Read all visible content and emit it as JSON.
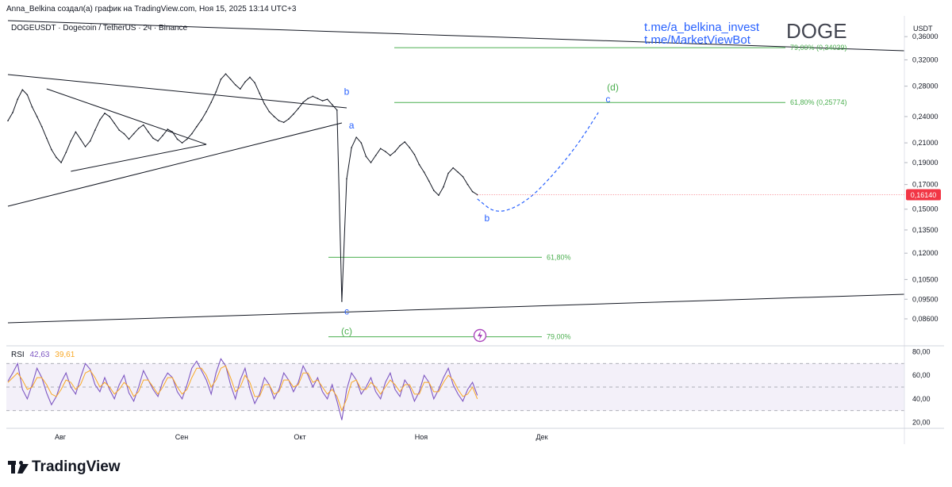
{
  "header": {
    "attribution": "Anna_Belkina создал(а) график на TradingView.com, Ноя 15, 2025 13:14 UTC+3",
    "symbol_info": "DOGEUSDT · Dogecoin / TetherUS · 2ч · Binance",
    "link1": "t.me/a_belkina_invest",
    "link2": "t.me/MarketViewBot",
    "ticker": "DOGE"
  },
  "footer": {
    "brand": "TradingView"
  },
  "rsi_legend": {
    "label": "RSI",
    "value1": "42,63",
    "value2": "39,61"
  },
  "colors": {
    "price": "#131722",
    "rsi_line": "#7e57c2",
    "rsi_ma": "#f9a825",
    "fib": "#4caf50",
    "wave": "#2962ff",
    "price_badge": "#f23645"
  },
  "chart_data": [
    {
      "type": "line",
      "title": "DOGEUSDT · Dogecoin / TetherUS · 2ч · Binance",
      "ylabel": "USDT",
      "y_scale": "log",
      "ylim": [
        0.075,
        0.4
      ],
      "x_ticks": [
        "Авг",
        "Сен",
        "Окт",
        "Ноя",
        "Дек"
      ],
      "y_ticks": [
        "0,36000",
        "0,32000",
        "0,28000",
        "0,24000",
        "0,21000",
        "0,19000",
        "0,17000",
        "0,15000",
        "0,13500",
        "0,12000",
        "0,10500",
        "0,09500",
        "0,08600"
      ],
      "y_tick_values": [
        0.36,
        0.32,
        0.28,
        0.24,
        0.21,
        0.19,
        0.17,
        0.15,
        0.135,
        0.12,
        0.105,
        0.095,
        0.086
      ],
      "last_price": "0,16140",
      "last_price_value": 0.1614,
      "series": [
        {
          "values": [
            0.235,
            0.245,
            0.262,
            0.275,
            0.268,
            0.252,
            0.24,
            0.228,
            0.215,
            0.203,
            0.195,
            0.19,
            0.2,
            0.212,
            0.222,
            0.214,
            0.206,
            0.212,
            0.224,
            0.236,
            0.244,
            0.24,
            0.232,
            0.224,
            0.22,
            0.214,
            0.22,
            0.226,
            0.23,
            0.222,
            0.215,
            0.212,
            0.218,
            0.225,
            0.222,
            0.214,
            0.21,
            0.214,
            0.22,
            0.228,
            0.236,
            0.246,
            0.258,
            0.272,
            0.29,
            0.298,
            0.29,
            0.282,
            0.276,
            0.286,
            0.293,
            0.285,
            0.27,
            0.256,
            0.246,
            0.24,
            0.235,
            0.233,
            0.237,
            0.243,
            0.25,
            0.258,
            0.263,
            0.266,
            0.263,
            0.26,
            0.262,
            0.255,
            0.248,
            0.094,
            0.175,
            0.205,
            0.216,
            0.21,
            0.196,
            0.19,
            0.197,
            0.204,
            0.201,
            0.197,
            0.201,
            0.207,
            0.211,
            0.205,
            0.198,
            0.188,
            0.181,
            0.173,
            0.165,
            0.161,
            0.168,
            0.18,
            0.185,
            0.181,
            0.177,
            0.17,
            0.164,
            0.1614
          ]
        }
      ],
      "fib_levels": [
        {
          "label": "79,00% (0,34039)",
          "value": 0.34039
        },
        {
          "label": "61,80% (0,25774)",
          "value": 0.25774
        },
        {
          "label": "61,80%",
          "value": 0.1175
        },
        {
          "label": "79,00%",
          "value": 0.0785
        }
      ],
      "wave_labels": [
        {
          "label": "b",
          "color": "wave",
          "value": 0.268,
          "index": 70
        },
        {
          "label": "a",
          "color": "wave",
          "value": 0.226,
          "index": 71
        },
        {
          "label": "c",
          "color": "wave",
          "value": 0.088,
          "index": 70
        },
        {
          "label": "(c)",
          "color": "fib",
          "value": 0.0795,
          "index": 70
        },
        {
          "label": "b",
          "color": "wave",
          "value": 0.141,
          "index": 99
        },
        {
          "label": "c",
          "color": "wave",
          "value": 0.258,
          "index": 124
        },
        {
          "label": "(d)",
          "color": "fib",
          "value": 0.274,
          "index": 125
        }
      ],
      "forecast_path": [
        {
          "index": 97,
          "value": 0.158
        },
        {
          "index": 101,
          "value": 0.146
        },
        {
          "index": 107,
          "value": 0.155
        },
        {
          "index": 113,
          "value": 0.18
        },
        {
          "index": 118,
          "value": 0.21
        },
        {
          "index": 122,
          "value": 0.245
        }
      ]
    },
    {
      "type": "line",
      "title": "RSI",
      "ylim": [
        15,
        85
      ],
      "y_ticks": [
        "80,00",
        "60,00",
        "40,00",
        "20,00"
      ],
      "y_tick_values": [
        80,
        60,
        40,
        20
      ],
      "bands": [
        70,
        50,
        30
      ],
      "series": [
        {
          "name": "RSI",
          "value": "42,63",
          "values": [
            55,
            62,
            70,
            48,
            40,
            52,
            66,
            58,
            45,
            35,
            42,
            54,
            62,
            50,
            44,
            58,
            70,
            65,
            52,
            46,
            58,
            48,
            40,
            52,
            60,
            45,
            38,
            50,
            64,
            56,
            48,
            42,
            55,
            62,
            58,
            46,
            40,
            52,
            66,
            72,
            64,
            56,
            44,
            62,
            74,
            68,
            52,
            40,
            56,
            66,
            48,
            36,
            44,
            58,
            52,
            40,
            48,
            62,
            56,
            46,
            54,
            68,
            60,
            50,
            58,
            46,
            40,
            52,
            38,
            22,
            48,
            62,
            56,
            44,
            50,
            58,
            46,
            40,
            54,
            62,
            48,
            42,
            56,
            50,
            38,
            46,
            60,
            54,
            40,
            48,
            58,
            66,
            52,
            44,
            38,
            48,
            54,
            43
          ]
        },
        {
          "name": "MA",
          "value": "39,61",
          "values": [
            54,
            58,
            62,
            56,
            48,
            50,
            58,
            58,
            52,
            44,
            42,
            48,
            56,
            54,
            48,
            52,
            62,
            64,
            58,
            50,
            54,
            50,
            44,
            48,
            54,
            50,
            42,
            46,
            56,
            56,
            50,
            44,
            50,
            58,
            58,
            50,
            44,
            48,
            58,
            66,
            66,
            60,
            50,
            56,
            66,
            68,
            58,
            46,
            50,
            60,
            54,
            42,
            42,
            52,
            52,
            44,
            46,
            56,
            56,
            50,
            52,
            62,
            62,
            54,
            56,
            50,
            44,
            48,
            42,
            30,
            40,
            54,
            56,
            48,
            48,
            54,
            50,
            44,
            50,
            56,
            52,
            46,
            52,
            52,
            44,
            44,
            54,
            54,
            46,
            46,
            54,
            60,
            56,
            48,
            42,
            44,
            50,
            40
          ]
        }
      ]
    }
  ]
}
